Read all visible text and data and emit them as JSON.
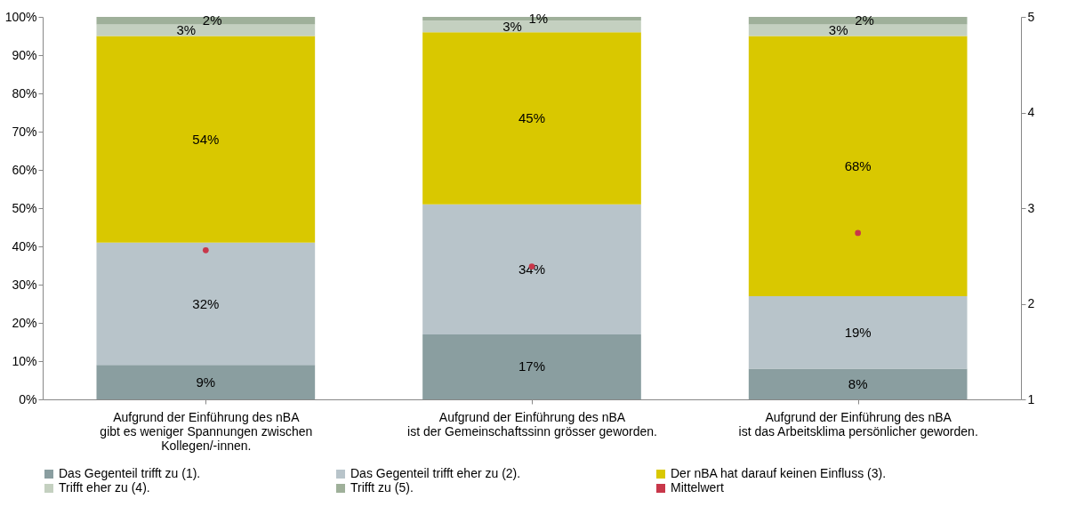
{
  "chart_data": {
    "type": "bar",
    "stacked": true,
    "categories": [
      "Aufgrund der Einführung des nBA\ngibt es weniger Spannungen zwischen\nKollegen/-innen.",
      "Aufgrund der Einführung des nBA\nist der Gemeinschaftssinn grösser geworden.",
      "Aufgrund der Einführung des nBA\nist das Arbeitsklima persönlicher geworden."
    ],
    "series": [
      {
        "name": "Das Gegenteil trifft zu (1).",
        "color": "#8a9ea0",
        "values": [
          9,
          17,
          8
        ],
        "value_labels": [
          "9%",
          "17%",
          "8%"
        ]
      },
      {
        "name": "Das Gegenteil trifft eher zu (2).",
        "color": "#b8c4ca",
        "values": [
          32,
          34,
          19
        ],
        "value_labels": [
          "32%",
          "34%",
          "19%"
        ]
      },
      {
        "name": "Der nBA hat darauf keinen Einfluss (3).",
        "color": "#d9c800",
        "values": [
          54,
          45,
          68
        ],
        "value_labels": [
          "54%",
          "45%",
          "68%"
        ]
      },
      {
        "name": "Trifft eher zu (4).",
        "color": "#c4d0c0",
        "values": [
          3,
          3,
          3
        ],
        "value_labels": [
          "3%",
          "3%",
          "3%"
        ]
      },
      {
        "name": "Trifft zu (5).",
        "color": "#9fb09a",
        "values": [
          2,
          1,
          2
        ],
        "value_labels": [
          "2%",
          "1%",
          "2%"
        ]
      },
      {
        "name": "Mittelwert",
        "type": "scatter",
        "axis": "y2",
        "color": "#c8374a",
        "x": [
          "Aufgrund der Einführung des nBA\ngibt es weniger Spannungen zwischen\nKollegen/-innen.",
          "Aufgrund der Einführung des nBA\nist der Gemeinschaftssinn grösser geworden.",
          "Aufgrund der Einführung des nBA\nist das Arbeitsklima persönlicher geworden."
        ],
        "values": [
          2.56,
          2.39,
          2.74
        ]
      }
    ],
    "ylim": [
      0,
      100
    ],
    "yticks": [
      {
        "value": 0,
        "label": "0%"
      },
      {
        "value": 10,
        "label": "10%"
      },
      {
        "value": 20,
        "label": "20%"
      },
      {
        "value": 30,
        "label": "30%"
      },
      {
        "value": 40,
        "label": "40%"
      },
      {
        "value": 50,
        "label": "50%"
      },
      {
        "value": 60,
        "label": "60%"
      },
      {
        "value": 70,
        "label": "70%"
      },
      {
        "value": 80,
        "label": "80%"
      },
      {
        "value": 90,
        "label": "90%"
      },
      {
        "value": 100,
        "label": "100%"
      }
    ],
    "y2lim": [
      1,
      5
    ],
    "y2ticks": [
      1,
      2,
      3,
      4,
      5
    ],
    "grid": false,
    "legend": "bottom",
    "marker": "circle"
  }
}
